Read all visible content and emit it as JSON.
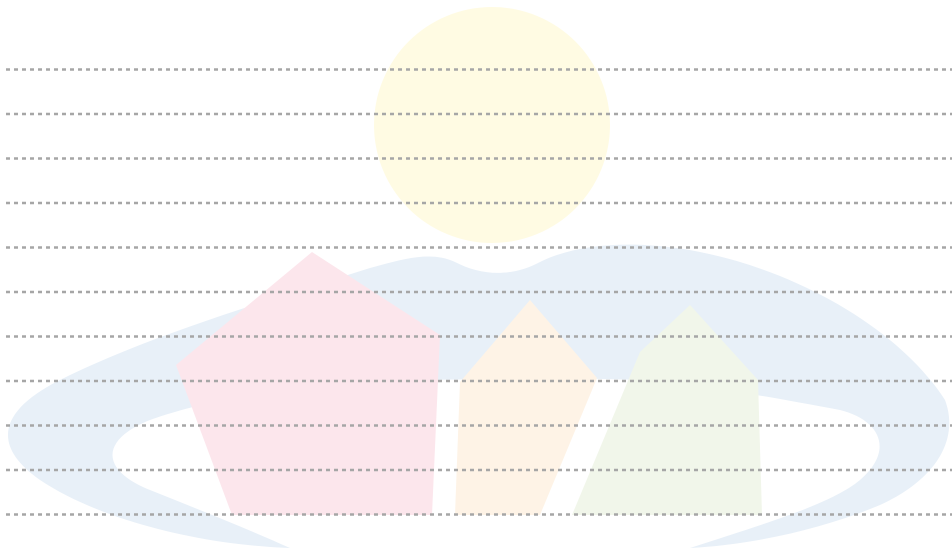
{
  "page": {
    "background": "#ffffff"
  },
  "watermark": {
    "icon": "logo-watermark-icon",
    "colors": {
      "sun": "#fffbe3",
      "swoosh": "#e8f0f8",
      "red_house": "#fce6ec",
      "orange_house": "#fef3e6",
      "green_house": "#f1f6ea"
    }
  },
  "ruled_lines": {
    "count": 11,
    "color": "#a6a6a6",
    "style": "dashed"
  }
}
